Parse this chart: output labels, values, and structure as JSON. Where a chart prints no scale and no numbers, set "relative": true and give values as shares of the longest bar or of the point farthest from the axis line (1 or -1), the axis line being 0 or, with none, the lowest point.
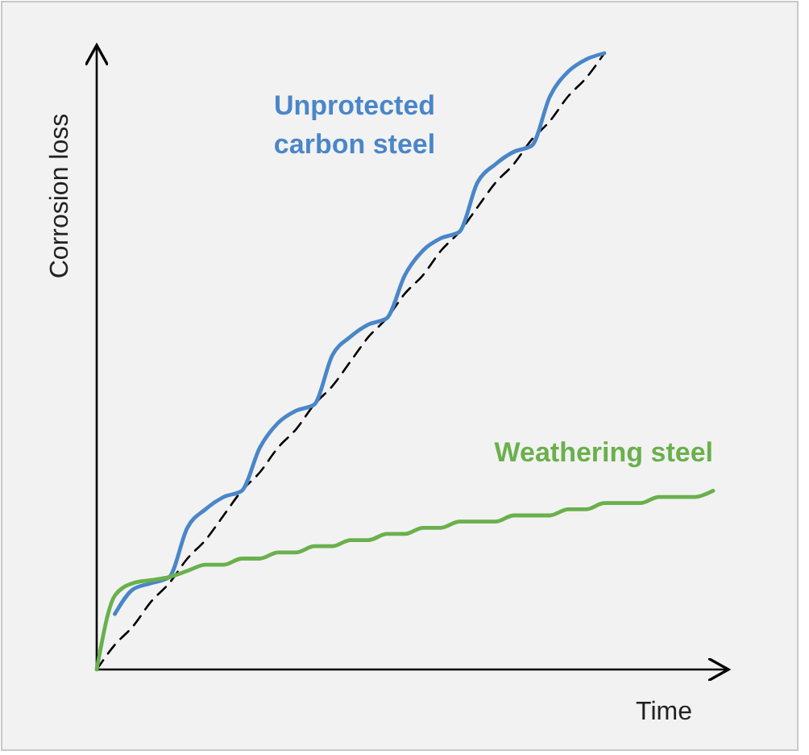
{
  "chart_data": {
    "type": "line",
    "relative": true,
    "xlabel": "Time",
    "ylabel": "Corrosion loss",
    "tick_labels": false,
    "categories": [
      null,
      null,
      null,
      null,
      null,
      null,
      null,
      null,
      null,
      null,
      null,
      null,
      null,
      null,
      null,
      null,
      null,
      null,
      null,
      null,
      null,
      null,
      null,
      null,
      null,
      null,
      null,
      null,
      null,
      null,
      null,
      null,
      null,
      null,
      null
    ],
    "series": [
      {
        "color": "#000000",
        "line_style": "dashed",
        "values": [
          0,
          0.04,
          0.07,
          0.11,
          0.14,
          0.18,
          0.21,
          0.25,
          0.29,
          0.32,
          0.36,
          0.39,
          0.43,
          0.46,
          0.5,
          0.54,
          0.57,
          0.61,
          0.64,
          0.68,
          0.71,
          0.75,
          0.79,
          0.82,
          0.86,
          0.89,
          0.93,
          0.96,
          1,
          null,
          null,
          null,
          null,
          null,
          null
        ]
      },
      {
        "name": "Unprotected carbon steel",
        "color": "#4a86c8",
        "values": [
          null,
          0.09,
          0.13,
          0.14,
          0.15,
          0.23,
          0.26,
          0.28,
          0.29,
          0.36,
          0.4,
          0.42,
          0.43,
          0.51,
          0.54,
          0.56,
          0.57,
          0.64,
          0.68,
          0.7,
          0.71,
          0.79,
          0.82,
          0.84,
          0.85,
          0.93,
          0.97,
          0.99,
          1,
          null,
          null,
          null,
          null,
          null,
          null
        ]
      },
      {
        "name": "Weathering steel",
        "color": "#6ab04c",
        "values": [
          0,
          0.12,
          0.14,
          0.145,
          0.15,
          0.16,
          0.17,
          0.17,
          0.18,
          0.18,
          0.19,
          0.19,
          0.2,
          0.2,
          0.21,
          0.21,
          0.22,
          0.22,
          0.23,
          0.23,
          0.24,
          0.24,
          0.24,
          0.25,
          0.25,
          0.25,
          0.26,
          0.26,
          0.27,
          0.27,
          0.27,
          0.28,
          0.28,
          0.28,
          0.29
        ]
      }
    ]
  }
}
